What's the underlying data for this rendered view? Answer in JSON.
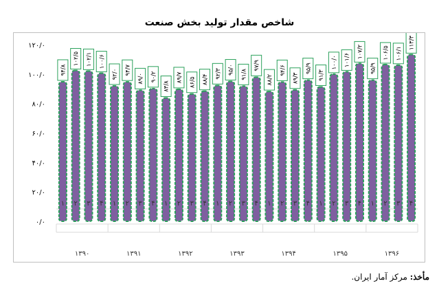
{
  "title": "شاخص مقدار تولید بخش صنعت",
  "source": {
    "label": "مأخذ:",
    "text": "مرکز آمار ایران."
  },
  "chart_data": {
    "type": "bar",
    "title": "شاخص مقدار تولید بخش صنعت",
    "ylim": [
      0,
      120
    ],
    "yticks": [
      "۰/۰",
      "۲۰/۰",
      "۴۰/۰",
      "۶۰/۰",
      "۸۰/۰",
      "۱۰۰/۰",
      "۱۲۰/۰"
    ],
    "grid": false,
    "legend": "none",
    "bar_color": "#7f5fa0",
    "bar_border_color": "#2aa05a",
    "label_border_color": "#2aa05a",
    "groups": [
      {
        "year": "۱۳۹۰",
        "quarters": [
          "۱",
          "۲",
          "۳",
          "۴"
        ],
        "values": [
          94.8,
          102.5,
          102.1,
          100.6
        ],
        "labels": [
          "۹۴/۸",
          "۱۰۲/۵",
          "۱۰۲/۱",
          "۱۰۰/۶"
        ]
      },
      {
        "year": "۱۳۹۱",
        "quarters": [
          "۱",
          "۲",
          "۳",
          "۴"
        ],
        "values": [
          92.0,
          94.7,
          89.0,
          90.2
        ],
        "labels": [
          "۹۲/۰",
          "۹۴/۷",
          "۸۹/۰",
          "۹۰/۲"
        ]
      },
      {
        "year": "۱۳۹۲",
        "quarters": [
          "۱",
          "۲",
          "۳",
          "۴"
        ],
        "values": [
          83.8,
          89.7,
          86.5,
          88.4
        ],
        "labels": [
          "۸۳/۸",
          "۸۹/۷",
          "۸۶/۵",
          "۸۸/۴"
        ]
      },
      {
        "year": "۱۳۹۳",
        "quarters": [
          "۱",
          "۲",
          "۳",
          "۴"
        ],
        "values": [
          92.3,
          95.0,
          91.8,
          97.9
        ],
        "labels": [
          "۹۲/۳",
          "۹۵/۰",
          "۹۱/۸",
          "۹۷/۹"
        ]
      },
      {
        "year": "۱۳۹۴",
        "quarters": [
          "۱",
          "۲",
          "۳",
          "۴"
        ],
        "values": [
          88.2,
          94.6,
          89.3,
          95.9
        ],
        "labels": [
          "۸۸/۲",
          "۹۴/۶",
          "۸۹/۳",
          "۹۵/۹"
        ]
      },
      {
        "year": "۱۳۹۵",
        "quarters": [
          "۱",
          "۲",
          "۳",
          "۴"
        ],
        "values": [
          91.3,
          100.0,
          101.6,
          107.2
        ],
        "labels": [
          "۹۱/۳",
          "۱۰۰/۰",
          "۱۰۱/۶",
          "۱۰۷/۲"
        ]
      },
      {
        "year": "۱۳۹۶",
        "quarters": [
          "۱",
          "۲",
          "۳",
          "۴"
        ],
        "values": [
          95.9,
          106.5,
          106.1,
          113.3
        ],
        "labels": [
          "۹۵/۹",
          "۱۰۶/۵",
          "۱۰۶/۱",
          "۱۱۳/۳"
        ]
      }
    ]
  }
}
